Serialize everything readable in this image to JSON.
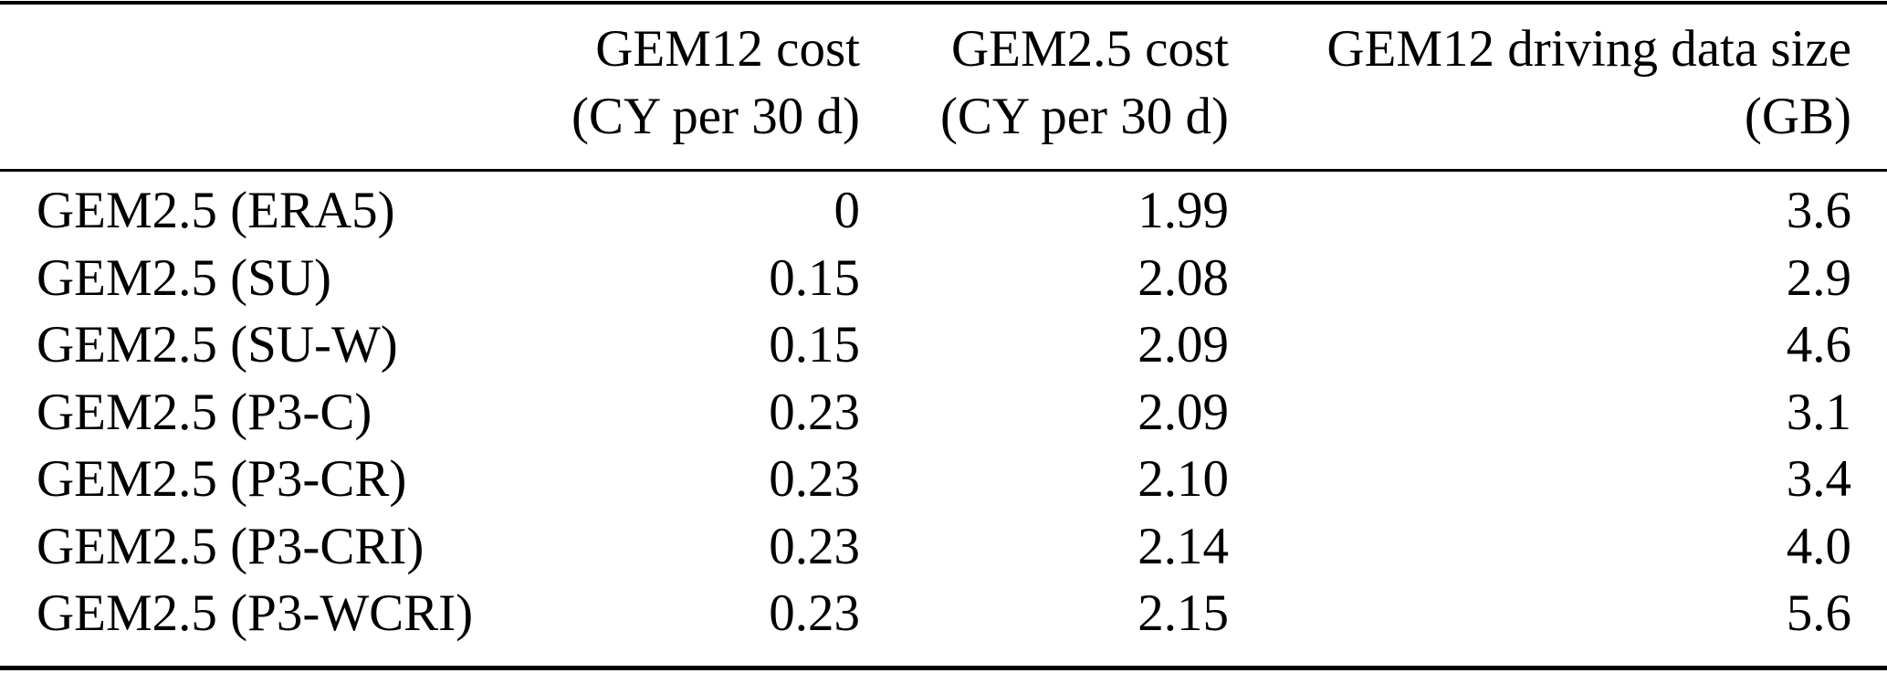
{
  "page": {
    "background_color": "#ffffff",
    "text_color": "#000000",
    "rule_color": "#000000"
  },
  "table": {
    "header": {
      "columns": [
        {
          "line1": "",
          "line2": ""
        },
        {
          "line1": "GEM12 cost",
          "line2": "(CY per 30 d)"
        },
        {
          "line1": "GEM2.5 cost",
          "line2": "(CY per 30 d)"
        },
        {
          "line1": "GEM12 driving data size",
          "line2": "(GB)"
        }
      ]
    },
    "rows": [
      {
        "model": "GEM2.5 (ERA5)",
        "gem12_cost": "0",
        "gem25_cost": "1.99",
        "gem12_driving_data_size_gb": "3.6"
      },
      {
        "model": "GEM2.5 (SU)",
        "gem12_cost": "0.15",
        "gem25_cost": "2.08",
        "gem12_driving_data_size_gb": "2.9"
      },
      {
        "model": "GEM2.5 (SU-W)",
        "gem12_cost": "0.15",
        "gem25_cost": "2.09",
        "gem12_driving_data_size_gb": "4.6"
      },
      {
        "model": "GEM2.5 (P3-C)",
        "gem12_cost": "0.23",
        "gem25_cost": "2.09",
        "gem12_driving_data_size_gb": "3.1"
      },
      {
        "model": "GEM2.5 (P3-CR)",
        "gem12_cost": "0.23",
        "gem25_cost": "2.10",
        "gem12_driving_data_size_gb": "3.4"
      },
      {
        "model": "GEM2.5 (P3-CRI)",
        "gem12_cost": "0.23",
        "gem25_cost": "2.14",
        "gem12_driving_data_size_gb": "4.0"
      },
      {
        "model": "GEM2.5 (P3-WCRI)",
        "gem12_cost": "0.23",
        "gem25_cost": "2.15",
        "gem12_driving_data_size_gb": "5.6"
      }
    ]
  }
}
